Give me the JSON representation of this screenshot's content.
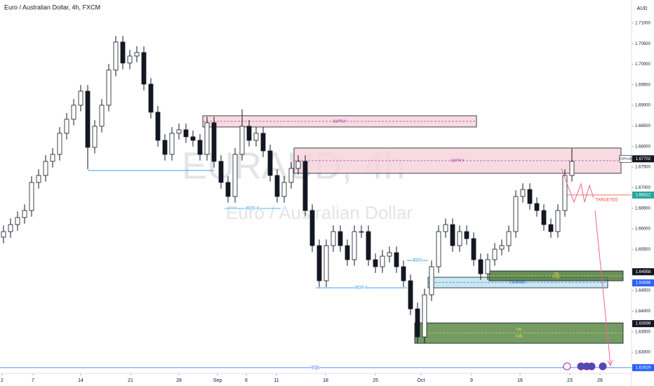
{
  "chart_data": {
    "type": "candlestick",
    "title": "Euro / Australian Dollar, 4h, FXCM",
    "currency": "AUD",
    "watermark": "EURAUD, 4h",
    "watermark_subtitle": "Euro / Australian Dollar",
    "up_color": "#ffffff",
    "down_color": "#131722",
    "xlim": [
      -0.5,
      89.5
    ],
    "ylim": [
      1.6249,
      1.7156
    ],
    "xticks": [
      {
        "value": -0.2,
        "label": "2"
      },
      {
        "value": 4.2,
        "label": "7"
      },
      {
        "value": 11,
        "label": "14"
      },
      {
        "value": 18.1,
        "label": "21"
      },
      {
        "value": 25,
        "label": "28"
      },
      {
        "value": 30.5,
        "label": "Sep"
      },
      {
        "value": 34.6,
        "label": "6"
      },
      {
        "value": 38.9,
        "label": "11"
      },
      {
        "value": 45.9,
        "label": "18"
      },
      {
        "value": 53,
        "label": "25"
      },
      {
        "value": 59.5,
        "label": "Oct"
      },
      {
        "value": 66.7,
        "label": "9"
      },
      {
        "value": 73.6,
        "label": "16"
      },
      {
        "value": 80.7,
        "label": "23"
      },
      {
        "value": 85,
        "label": "26"
      }
    ],
    "yticks": [
      {
        "value": 1.71,
        "label": "1.71000"
      },
      {
        "value": 1.705,
        "label": "1.70500"
      },
      {
        "value": 1.7,
        "label": "1.70000"
      },
      {
        "value": 1.695,
        "label": "1.69500"
      },
      {
        "value": 1.69,
        "label": "1.69000"
      },
      {
        "value": 1.685,
        "label": "1.68500"
      },
      {
        "value": 1.68,
        "label": "1.68000"
      },
      {
        "value": 1.675,
        "label": "1.67500"
      },
      {
        "value": 1.67,
        "label": "1.67000"
      },
      {
        "value": 1.665,
        "label": "1.66500"
      },
      {
        "value": 1.66,
        "label": "1.66000"
      },
      {
        "value": 1.655,
        "label": "1.65500"
      },
      {
        "value": 1.65,
        "label": "1.65000"
      },
      {
        "value": 1.645,
        "label": "1.64500"
      },
      {
        "value": 1.64,
        "label": "1.64000"
      },
      {
        "value": 1.635,
        "label": "1.63500"
      },
      {
        "value": 1.63,
        "label": "1.63000"
      }
    ],
    "open": [
      1.658,
      1.65934,
      1.66104,
      1.66275,
      1.66446,
      1.67128,
      1.67298,
      1.6764,
      1.6781,
      1.68322,
      1.68663,
      1.69004,
      1.69345,
      1.67981,
      1.68493,
      1.69004,
      1.69857,
      1.70539,
      1.70028,
      1.70198,
      1.70284,
      1.69516,
      1.68834,
      1.68151,
      1.6781,
      1.68322,
      1.68407,
      1.68237,
      1.68151,
      1.6781,
      1.68578,
      1.6764,
      1.67128,
      1.66787,
      1.6781,
      1.68493,
      1.68151,
      1.68322,
      1.67895,
      1.67298,
      1.66787,
      1.67128,
      1.67469,
      1.6764,
      1.66446,
      1.65593,
      1.6474,
      1.65593,
      1.65934,
      1.65593,
      1.65252,
      1.65934,
      1.65934,
      1.65252,
      1.65081,
      1.65337,
      1.65422,
      1.65081,
      1.6474,
      1.64057,
      1.63375,
      1.64399,
      1.65081,
      1.65934,
      1.66104,
      1.65593,
      1.65934,
      1.65763,
      1.65252,
      1.6491,
      1.65252,
      1.65507,
      1.65593,
      1.65934,
      1.66787,
      1.66957,
      1.66616,
      1.66446,
      1.66104,
      1.65934,
      1.66446,
      1.67298
    ],
    "high": [
      1.66084,
      1.66254,
      1.66425,
      1.66596,
      1.67278,
      1.67448,
      1.6779,
      1.6796,
      1.68472,
      1.68813,
      1.69154,
      1.69495,
      1.69495,
      1.68643,
      1.69154,
      1.70007,
      1.70689,
      1.70689,
      1.70348,
      1.70434,
      1.70434,
      1.69666,
      1.68984,
      1.68301,
      1.68472,
      1.68557,
      1.68557,
      1.68387,
      1.68301,
      1.68728,
      1.68728,
      1.6779,
      1.67278,
      1.6796,
      1.689,
      1.68643,
      1.68472,
      1.68472,
      1.68045,
      1.67448,
      1.67278,
      1.67619,
      1.6779,
      1.6779,
      1.66596,
      1.65743,
      1.65743,
      1.66084,
      1.66084,
      1.65743,
      1.66084,
      1.66084,
      1.66084,
      1.65402,
      1.65487,
      1.65572,
      1.65572,
      1.65231,
      1.6489,
      1.64207,
      1.64549,
      1.65231,
      1.66084,
      1.66254,
      1.66254,
      1.66084,
      1.66084,
      1.65913,
      1.65402,
      1.65402,
      1.65657,
      1.65743,
      1.66084,
      1.66937,
      1.67107,
      1.67107,
      1.66766,
      1.66596,
      1.66254,
      1.66596,
      1.67448,
      1.6795
    ],
    "low": [
      1.6565,
      1.65784,
      1.65954,
      1.66125,
      1.66296,
      1.66978,
      1.67148,
      1.6749,
      1.6766,
      1.68172,
      1.68513,
      1.68854,
      1.6745,
      1.67831,
      1.68343,
      1.68854,
      1.69707,
      1.69878,
      1.69878,
      1.70048,
      1.69366,
      1.68684,
      1.68001,
      1.6766,
      1.6766,
      1.68172,
      1.68087,
      1.68001,
      1.6766,
      1.6766,
      1.6749,
      1.66978,
      1.66637,
      1.66637,
      1.6766,
      1.68001,
      1.68001,
      1.67745,
      1.67148,
      1.66637,
      1.66637,
      1.66978,
      1.67319,
      1.66296,
      1.65443,
      1.6459,
      1.6459,
      1.65443,
      1.65443,
      1.65102,
      1.65102,
      1.65784,
      1.65102,
      1.64931,
      1.64931,
      1.65187,
      1.64931,
      1.6459,
      1.63907,
      1.63225,
      1.63225,
      1.64249,
      1.64931,
      1.65784,
      1.65443,
      1.65443,
      1.65613,
      1.65102,
      1.6476,
      1.6476,
      1.65102,
      1.65357,
      1.65443,
      1.65784,
      1.66637,
      1.66466,
      1.66296,
      1.65954,
      1.65784,
      1.65784,
      1.66296,
      1.67148
    ],
    "close": [
      1.65934,
      1.66104,
      1.66275,
      1.66446,
      1.67128,
      1.67298,
      1.6764,
      1.6781,
      1.68322,
      1.68663,
      1.69004,
      1.69345,
      1.67981,
      1.68493,
      1.69004,
      1.69857,
      1.70539,
      1.70028,
      1.70198,
      1.70284,
      1.69516,
      1.68834,
      1.68151,
      1.6781,
      1.68322,
      1.68407,
      1.68237,
      1.68151,
      1.6781,
      1.68578,
      1.6764,
      1.67128,
      1.66787,
      1.6781,
      1.68493,
      1.68151,
      1.68322,
      1.67895,
      1.67298,
      1.66787,
      1.67128,
      1.67469,
      1.6764,
      1.66446,
      1.65593,
      1.6474,
      1.65593,
      1.65934,
      1.65593,
      1.65252,
      1.65934,
      1.65934,
      1.65252,
      1.65081,
      1.65337,
      1.65422,
      1.65081,
      1.6474,
      1.64057,
      1.63375,
      1.64399,
      1.65081,
      1.65934,
      1.66104,
      1.65593,
      1.65934,
      1.65763,
      1.65252,
      1.6491,
      1.65252,
      1.65507,
      1.65593,
      1.65934,
      1.66787,
      1.66957,
      1.66616,
      1.66446,
      1.66104,
      1.65934,
      1.66446,
      1.67298,
      1.6764
    ],
    "zones": [
      {
        "labels": [
          "SUPPLY"
        ],
        "top": 1.68748,
        "bottom": 1.68475,
        "from": 28.4,
        "to": 67.4,
        "fill": "#f6d5da",
        "text_color": "#9c27b0"
      },
      {
        "labels": [
          "SUPPLY"
        ],
        "top": 1.67964,
        "bottom": 1.6735,
        "from": 41.4,
        "to": 88,
        "fill": "#f6d5da",
        "text_color": "#9c27b0"
      },
      {
        "labels": [
          "DEMAND"
        ],
        "top": 1.64825,
        "bottom": 1.64569,
        "from": 60.5,
        "to": 86.1,
        "fill": "#bfe4ee",
        "text_color": "#2962ff"
      },
      {
        "labels": [
          "OB",
          "FOB"
        ],
        "top": 1.64978,
        "bottom": 1.64739,
        "from": 69.2,
        "to": 88.3,
        "fill": "#4e7a3c",
        "text_color": "#e8e24a"
      },
      {
        "labels": [
          "OB",
          "FOB"
        ],
        "top": 1.63716,
        "bottom": 1.63221,
        "from": 58.6,
        "to": 88.3,
        "fill": "#5a8a48",
        "text_color": "#e8e24a"
      }
    ],
    "levels": [
      {
        "price": 1.67418,
        "from": 12,
        "to": 30,
        "color": "#2196f3"
      },
      {
        "label": "BOS-4",
        "price": 1.66497,
        "from": 31.5,
        "to": 39.5,
        "color": "#2196f3"
      },
      {
        "label": "BOS-4",
        "price": 1.64569,
        "from": 44.5,
        "to": 57.5,
        "color": "#2196f3"
      },
      {
        "label": "BOS",
        "price": 1.65234,
        "from": 57.5,
        "to": 60.5,
        "color": "#2196f3"
      },
      {
        "label": "TARGETED",
        "price": 1.66822,
        "from": 80,
        "to": 89.5,
        "color": "#f44336"
      },
      {
        "label": "EQL",
        "price": 1.62629,
        "from": -0.5,
        "to": 89.5,
        "color": "#2962ff"
      }
    ],
    "price_tags": [
      {
        "label": "EURAUD",
        "value": 1.67702,
        "color": "#131722"
      },
      {
        "value": 1.66822,
        "color": "#26a69a"
      },
      {
        "value": 1.64958,
        "color": "#131722"
      },
      {
        "value": 1.64688,
        "color": "#2962ff"
      },
      {
        "value": 1.63698,
        "color": "#131722"
      },
      {
        "value": 1.62629,
        "color": "#2962ff"
      }
    ]
  }
}
